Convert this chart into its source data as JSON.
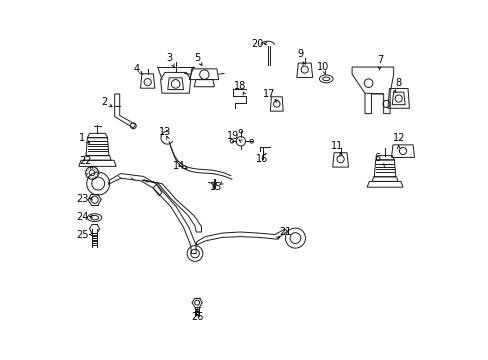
{
  "bg_color": "#ffffff",
  "line_color": "#1a1a1a",
  "figsize": [
    4.89,
    3.6
  ],
  "dpi": 100,
  "label_positions": {
    "1": [
      0.046,
      0.618,
      0.075,
      0.598
    ],
    "2": [
      0.108,
      0.718,
      0.138,
      0.7
    ],
    "3": [
      0.29,
      0.84,
      0.308,
      0.808
    ],
    "4": [
      0.2,
      0.81,
      0.22,
      0.79
    ],
    "5": [
      0.368,
      0.84,
      0.386,
      0.812
    ],
    "6": [
      0.87,
      0.56,
      0.89,
      0.542
    ],
    "7": [
      0.88,
      0.836,
      0.875,
      0.8
    ],
    "8": [
      0.928,
      0.77,
      0.92,
      0.748
    ],
    "9": [
      0.655,
      0.85,
      0.665,
      0.825
    ],
    "10": [
      0.718,
      0.815,
      0.728,
      0.788
    ],
    "11": [
      0.758,
      0.595,
      0.768,
      0.572
    ],
    "12": [
      0.93,
      0.618,
      0.93,
      0.592
    ],
    "13": [
      0.278,
      0.635,
      0.285,
      0.618
    ],
    "14": [
      0.318,
      0.54,
      0.348,
      0.53
    ],
    "15": [
      0.42,
      0.48,
      0.435,
      0.49
    ],
    "16": [
      0.548,
      0.558,
      0.555,
      0.572
    ],
    "17": [
      0.568,
      0.74,
      0.588,
      0.722
    ],
    "18": [
      0.488,
      0.762,
      0.498,
      0.742
    ],
    "19": [
      0.468,
      0.622,
      0.488,
      0.61
    ],
    "20": [
      0.535,
      0.88,
      0.558,
      0.88
    ],
    "21": [
      0.615,
      0.355,
      0.595,
      0.34
    ],
    "22": [
      0.058,
      0.552,
      0.072,
      0.535
    ],
    "23": [
      0.048,
      0.448,
      0.072,
      0.448
    ],
    "24": [
      0.048,
      0.398,
      0.072,
      0.398
    ],
    "25": [
      0.048,
      0.348,
      0.072,
      0.348
    ],
    "26": [
      0.368,
      0.118,
      0.368,
      0.148
    ]
  }
}
